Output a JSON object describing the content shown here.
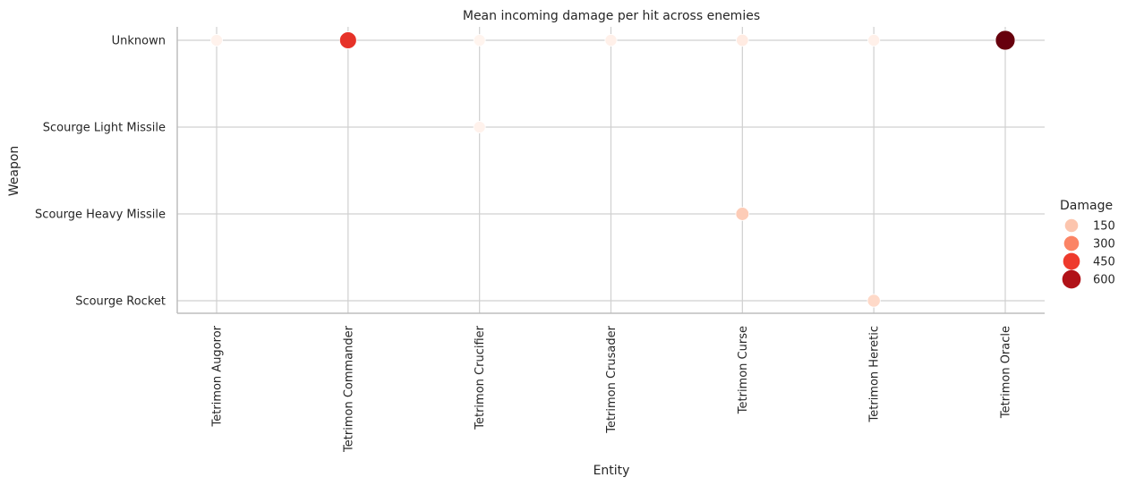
{
  "chart_data": {
    "type": "scatter",
    "title": "Mean incoming damage per hit across enemies",
    "xlabel": "Entity",
    "ylabel": "Weapon",
    "x_categories": [
      "Tetrimon Augoror",
      "Tetrimon Commander",
      "Tetrimon Crucifier",
      "Tetrimon Crusader",
      "Tetrimon Curse",
      "Tetrimon Heretic",
      "Tetrimon Oracle"
    ],
    "y_categories": [
      "Unknown",
      "Scourge Light Missile",
      "Scourge Heavy Missile",
      "Scourge Rocket"
    ],
    "points": [
      {
        "x": "Tetrimon Augoror",
        "y": "Unknown",
        "damage": 40
      },
      {
        "x": "Tetrimon Commander",
        "y": "Unknown",
        "damage": 470
      },
      {
        "x": "Tetrimon Crucifier",
        "y": "Unknown",
        "damage": 35
      },
      {
        "x": "Tetrimon Crusader",
        "y": "Unknown",
        "damage": 50
      },
      {
        "x": "Tetrimon Curse",
        "y": "Unknown",
        "damage": 70
      },
      {
        "x": "Tetrimon Heretic",
        "y": "Unknown",
        "damage": 50
      },
      {
        "x": "Tetrimon Oracle",
        "y": "Unknown",
        "damage": 700
      },
      {
        "x": "Tetrimon Crucifier",
        "y": "Scourge Light Missile",
        "damage": 40
      },
      {
        "x": "Tetrimon Curse",
        "y": "Scourge Heavy Missile",
        "damage": 160
      },
      {
        "x": "Tetrimon Heretic",
        "y": "Scourge Rocket",
        "damage": 130
      }
    ],
    "size_legend": {
      "title": "Damage",
      "entries": [
        {
          "label": "150",
          "value": 150,
          "color": "#fcc5ae"
        },
        {
          "label": "300",
          "value": 300,
          "color": "#fb8465"
        },
        {
          "label": "450",
          "value": 450,
          "color": "#ee3a2c"
        },
        {
          "label": "600",
          "value": 600,
          "color": "#b11218"
        }
      ],
      "placement": "right"
    },
    "color_scale": {
      "min": 30,
      "max": 700,
      "palette": [
        "#fff5f0",
        "#fee0d2",
        "#fcbba1",
        "#fc9272",
        "#fb6a4a",
        "#ef3b2c",
        "#cb181d",
        "#a50f15",
        "#67000d"
      ]
    },
    "grid": true
  }
}
